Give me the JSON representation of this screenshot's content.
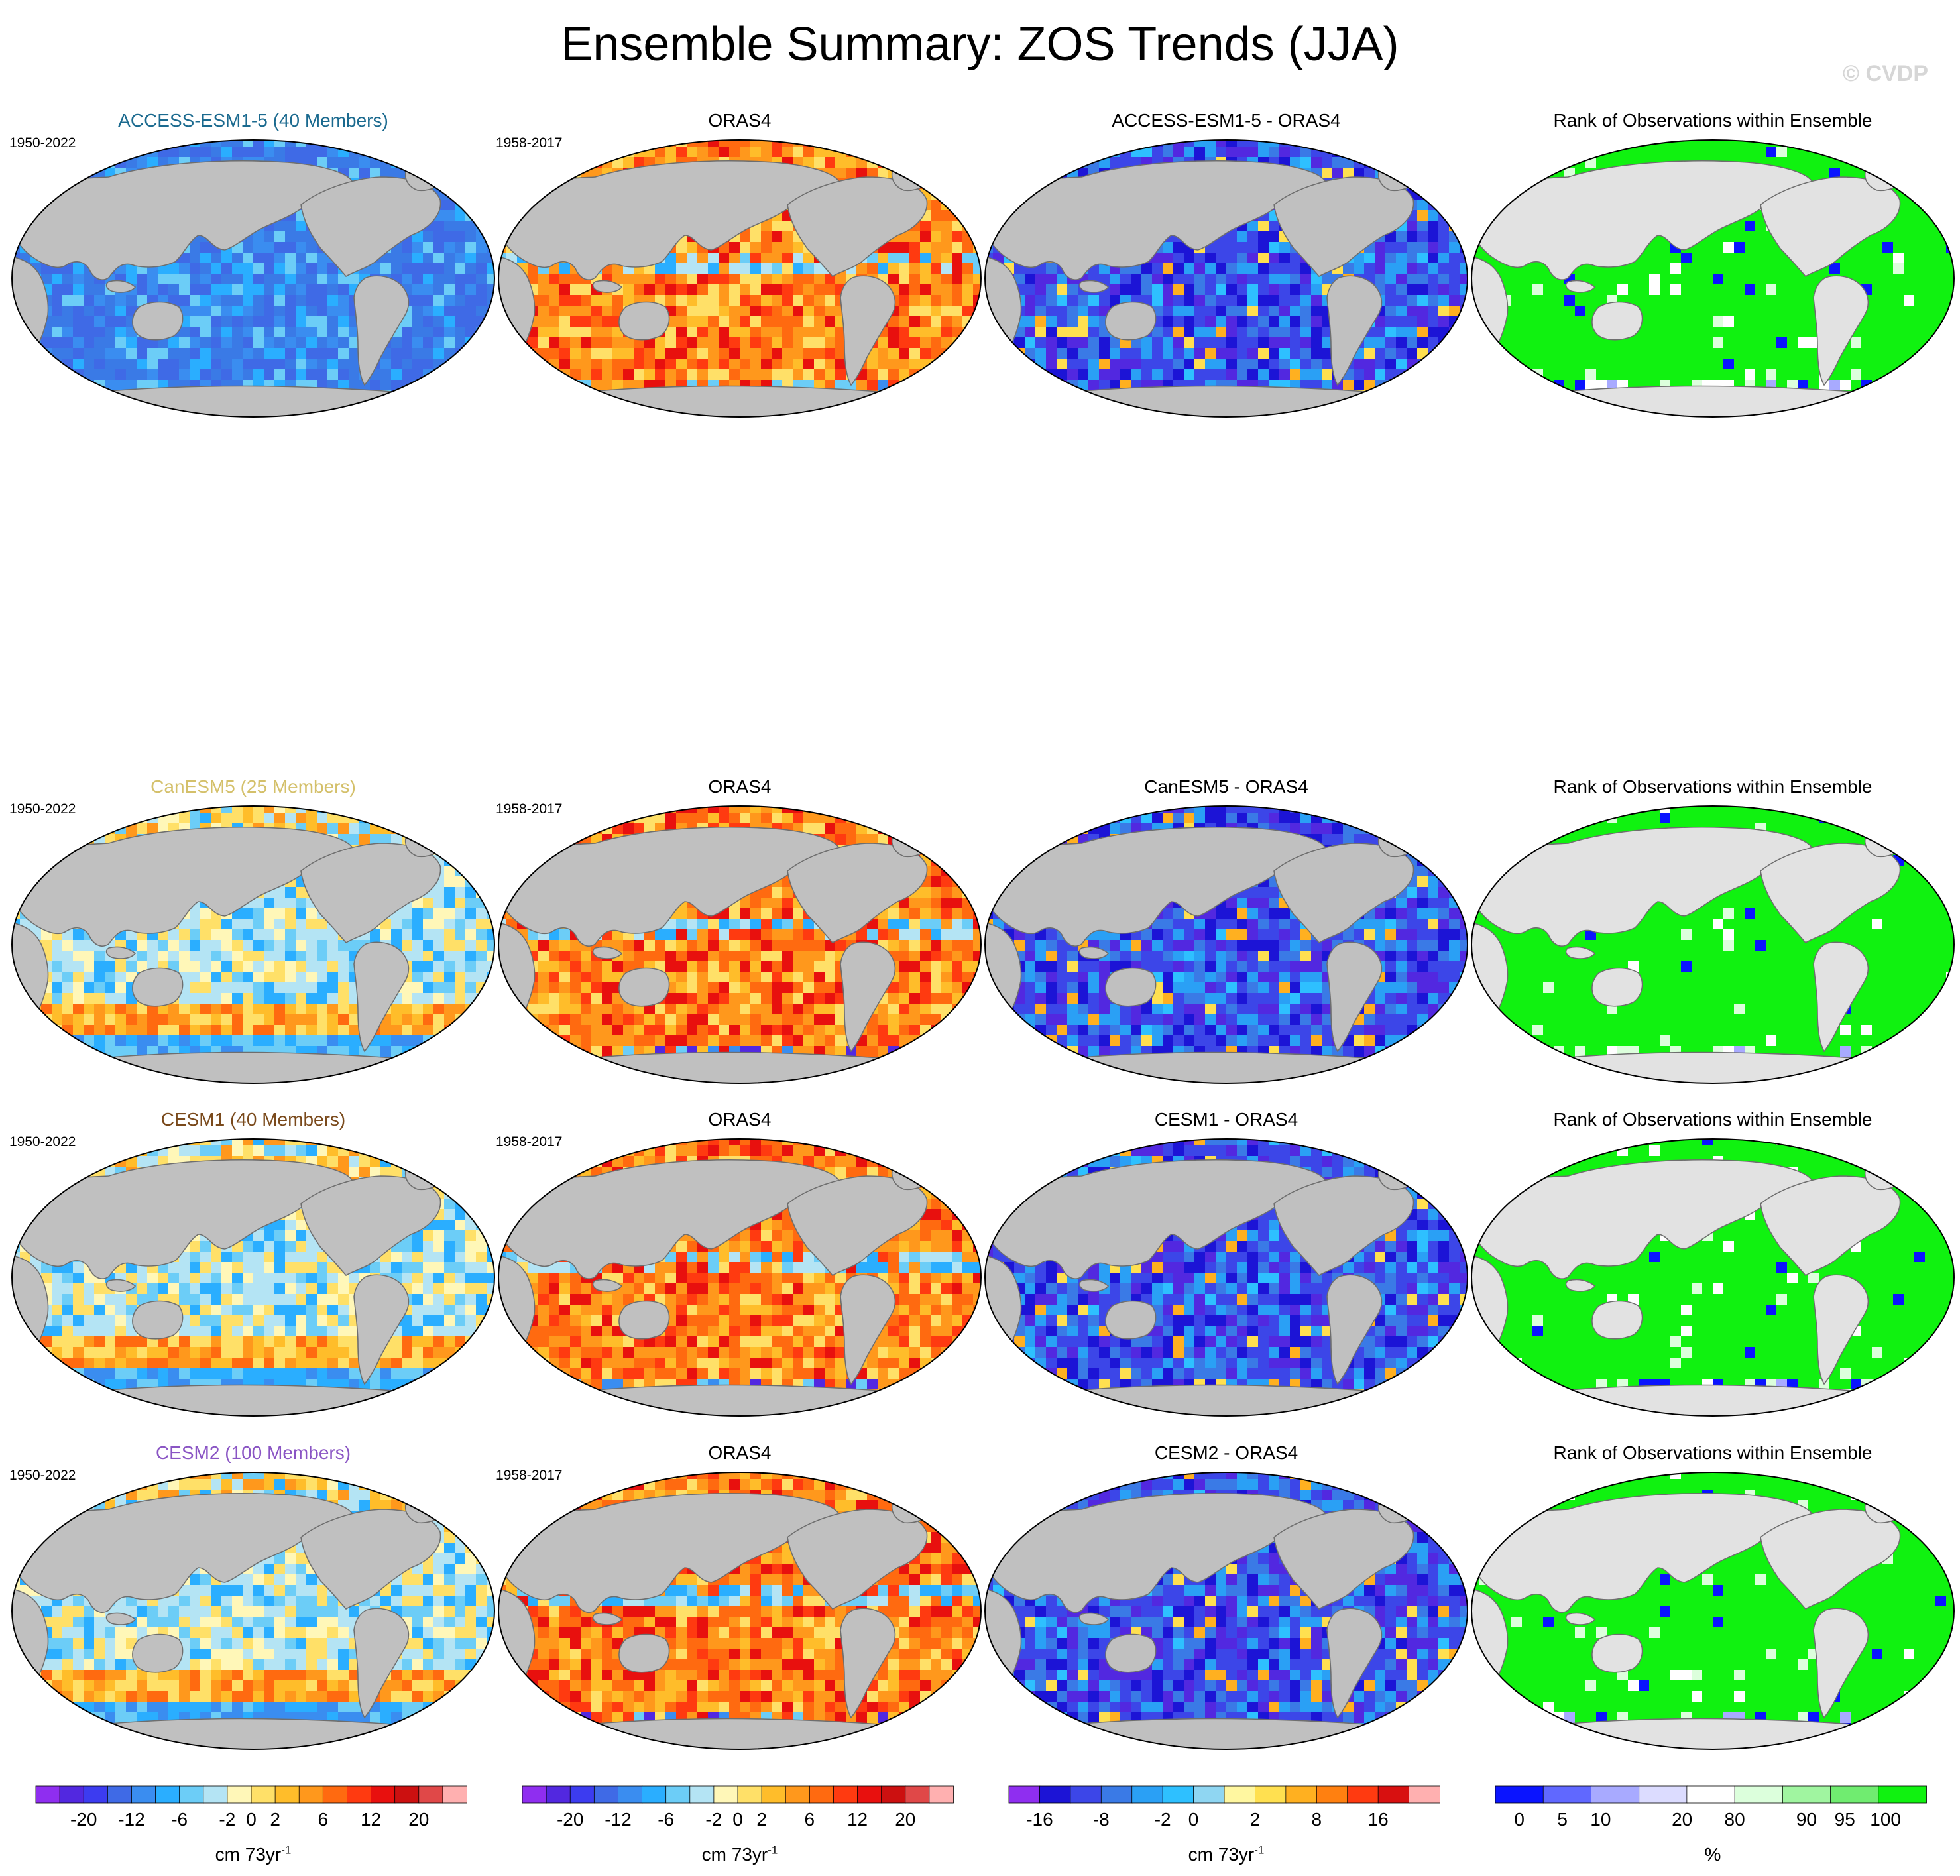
{
  "page": {
    "title": "Ensemble Summary: ZOS Trends (JJA)",
    "watermark": "© CVDP"
  },
  "rows": [
    {
      "panels": [
        {
          "title": "ACCESS-ESM1-5 (40 Members)",
          "period": "1950-2022",
          "title_color": "#1b6a8f",
          "scheme": "blue"
        },
        {
          "title": "ORAS4",
          "period": "1958-2017",
          "title_color": "#000000",
          "scheme": "red"
        },
        {
          "title": "ACCESS-ESM1-5 - ORAS4",
          "period": "",
          "title_color": "#000000",
          "scheme": "deepblue"
        },
        {
          "title": "Rank of Observations within Ensemble",
          "period": "",
          "title_color": "#000000",
          "scheme": "green"
        }
      ]
    },
    {
      "panels": [
        {
          "title": "CanESM5 (25 Members)",
          "period": "1950-2022",
          "title_color": "#d4c06a",
          "scheme": "mixed"
        },
        {
          "title": "ORAS4",
          "period": "1958-2017",
          "title_color": "#000000",
          "scheme": "red"
        },
        {
          "title": "CanESM5 - ORAS4",
          "period": "",
          "title_color": "#000000",
          "scheme": "deepblue"
        },
        {
          "title": "Rank of Observations within Ensemble",
          "period": "",
          "title_color": "#000000",
          "scheme": "green"
        }
      ]
    },
    {
      "panels": [
        {
          "title": "CESM1 (40 Members)",
          "period": "1950-2022",
          "title_color": "#7a4a1c",
          "scheme": "mixed"
        },
        {
          "title": "ORAS4",
          "period": "1958-2017",
          "title_color": "#000000",
          "scheme": "red"
        },
        {
          "title": "CESM1 - ORAS4",
          "period": "",
          "title_color": "#000000",
          "scheme": "deepblue"
        },
        {
          "title": "Rank of Observations within Ensemble",
          "period": "",
          "title_color": "#000000",
          "scheme": "green"
        }
      ]
    },
    {
      "panels": [
        {
          "title": "CESM2 (100 Members)",
          "period": "1950-2022",
          "title_color": "#8a55c4",
          "scheme": "mixed"
        },
        {
          "title": "ORAS4",
          "period": "1958-2017",
          "title_color": "#000000",
          "scheme": "red"
        },
        {
          "title": "CESM2 - ORAS4",
          "period": "",
          "title_color": "#000000",
          "scheme": "deepblue"
        },
        {
          "title": "Rank of Observations within Ensemble",
          "period": "",
          "title_color": "#000000",
          "scheme": "green"
        }
      ]
    }
  ],
  "colorbars": [
    {
      "units": "cm 73yr",
      "units_exp": "-1",
      "colors": [
        "#8f2ef0",
        "#5228e0",
        "#3c3cf0",
        "#3f6ae6",
        "#3a8df0",
        "#2aaeff",
        "#6ccdf7",
        "#b4e4f4",
        "#fff7b8",
        "#ffe068",
        "#ffbd2a",
        "#ff981c",
        "#ff6a10",
        "#ff3a10",
        "#e8100e",
        "#cc1010",
        "#e04848",
        "#ffb0b0"
      ],
      "ticks": [
        "-20",
        "-12",
        "-6",
        "-2",
        "0",
        "2",
        "6",
        "12",
        "20"
      ],
      "tick_boundaries": [
        2,
        4,
        6,
        8,
        9,
        10,
        12,
        14,
        16
      ]
    },
    {
      "units": "cm 73yr",
      "units_exp": "-1",
      "colors": [
        "#8f2ef0",
        "#5228e0",
        "#3c3cf0",
        "#3f6ae6",
        "#3a8df0",
        "#2aaeff",
        "#6ccdf7",
        "#b4e4f4",
        "#fff7b8",
        "#ffe068",
        "#ffbd2a",
        "#ff981c",
        "#ff6a10",
        "#ff3a10",
        "#e8100e",
        "#cc1010",
        "#e04848",
        "#ffb0b0"
      ],
      "ticks": [
        "-20",
        "-12",
        "-6",
        "-2",
        "0",
        "2",
        "6",
        "12",
        "20"
      ],
      "tick_boundaries": [
        2,
        4,
        6,
        8,
        9,
        10,
        12,
        14,
        16
      ]
    },
    {
      "units": "cm 73yr",
      "units_exp": "-1",
      "colors": [
        "#8f2ef0",
        "#1c14d6",
        "#3c46e8",
        "#3a7ae6",
        "#2aa0f5",
        "#2ec0ff",
        "#8fd6f2",
        "#fff7a0",
        "#ffe050",
        "#ffb020",
        "#ff8010",
        "#ff3a10",
        "#d81010",
        "#ffb0b0"
      ],
      "ticks": [
        "-16",
        "-8",
        "-2",
        "0",
        "2",
        "8",
        "16"
      ],
      "tick_boundaries": [
        1,
        3,
        5,
        6,
        8,
        10,
        12
      ]
    },
    {
      "units": "%",
      "units_exp": "",
      "colors": [
        "#0a14ff",
        "#6068ff",
        "#a8aaff",
        "#dcdcff",
        "#ffffff",
        "#dcffdc",
        "#a0f5a0",
        "#70ec70",
        "#10f210"
      ],
      "ticks": [
        "0",
        "5",
        "10",
        "20",
        "80",
        "90",
        "95",
        "100"
      ],
      "tick_boundaries": [
        0.5,
        1.4,
        2.2,
        3.9,
        5,
        6.5,
        7.3,
        8.15
      ]
    }
  ]
}
